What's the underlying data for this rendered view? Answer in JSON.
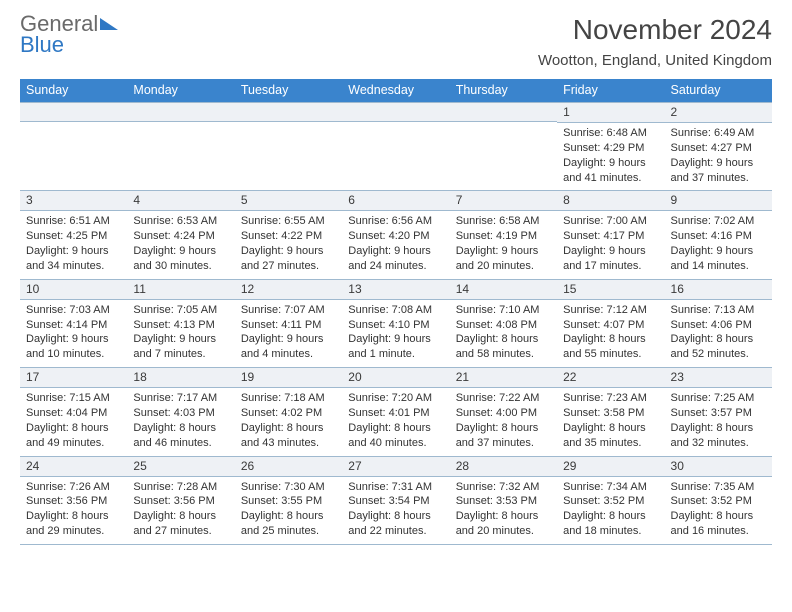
{
  "brand": {
    "name_a": "General",
    "name_b": "Blue"
  },
  "title": "November 2024",
  "location": "Wootton, England, United Kingdom",
  "colors": {
    "header_bg": "#3a84cd",
    "header_fg": "#ffffff",
    "daynum_bg": "#eef1f5",
    "border": "#9fb9cf",
    "text": "#333333",
    "brand_blue": "#2f78c4",
    "brand_gray": "#6a6a6a"
  },
  "dow": [
    "Sunday",
    "Monday",
    "Tuesday",
    "Wednesday",
    "Thursday",
    "Friday",
    "Saturday"
  ],
  "weeks": [
    [
      {
        "n": "",
        "sr": "",
        "ss": "",
        "dl": ""
      },
      {
        "n": "",
        "sr": "",
        "ss": "",
        "dl": ""
      },
      {
        "n": "",
        "sr": "",
        "ss": "",
        "dl": ""
      },
      {
        "n": "",
        "sr": "",
        "ss": "",
        "dl": ""
      },
      {
        "n": "",
        "sr": "",
        "ss": "",
        "dl": ""
      },
      {
        "n": "1",
        "sr": "Sunrise: 6:48 AM",
        "ss": "Sunset: 4:29 PM",
        "dl": "Daylight: 9 hours and 41 minutes."
      },
      {
        "n": "2",
        "sr": "Sunrise: 6:49 AM",
        "ss": "Sunset: 4:27 PM",
        "dl": "Daylight: 9 hours and 37 minutes."
      }
    ],
    [
      {
        "n": "3",
        "sr": "Sunrise: 6:51 AM",
        "ss": "Sunset: 4:25 PM",
        "dl": "Daylight: 9 hours and 34 minutes."
      },
      {
        "n": "4",
        "sr": "Sunrise: 6:53 AM",
        "ss": "Sunset: 4:24 PM",
        "dl": "Daylight: 9 hours and 30 minutes."
      },
      {
        "n": "5",
        "sr": "Sunrise: 6:55 AM",
        "ss": "Sunset: 4:22 PM",
        "dl": "Daylight: 9 hours and 27 minutes."
      },
      {
        "n": "6",
        "sr": "Sunrise: 6:56 AM",
        "ss": "Sunset: 4:20 PM",
        "dl": "Daylight: 9 hours and 24 minutes."
      },
      {
        "n": "7",
        "sr": "Sunrise: 6:58 AM",
        "ss": "Sunset: 4:19 PM",
        "dl": "Daylight: 9 hours and 20 minutes."
      },
      {
        "n": "8",
        "sr": "Sunrise: 7:00 AM",
        "ss": "Sunset: 4:17 PM",
        "dl": "Daylight: 9 hours and 17 minutes."
      },
      {
        "n": "9",
        "sr": "Sunrise: 7:02 AM",
        "ss": "Sunset: 4:16 PM",
        "dl": "Daylight: 9 hours and 14 minutes."
      }
    ],
    [
      {
        "n": "10",
        "sr": "Sunrise: 7:03 AM",
        "ss": "Sunset: 4:14 PM",
        "dl": "Daylight: 9 hours and 10 minutes."
      },
      {
        "n": "11",
        "sr": "Sunrise: 7:05 AM",
        "ss": "Sunset: 4:13 PM",
        "dl": "Daylight: 9 hours and 7 minutes."
      },
      {
        "n": "12",
        "sr": "Sunrise: 7:07 AM",
        "ss": "Sunset: 4:11 PM",
        "dl": "Daylight: 9 hours and 4 minutes."
      },
      {
        "n": "13",
        "sr": "Sunrise: 7:08 AM",
        "ss": "Sunset: 4:10 PM",
        "dl": "Daylight: 9 hours and 1 minute."
      },
      {
        "n": "14",
        "sr": "Sunrise: 7:10 AM",
        "ss": "Sunset: 4:08 PM",
        "dl": "Daylight: 8 hours and 58 minutes."
      },
      {
        "n": "15",
        "sr": "Sunrise: 7:12 AM",
        "ss": "Sunset: 4:07 PM",
        "dl": "Daylight: 8 hours and 55 minutes."
      },
      {
        "n": "16",
        "sr": "Sunrise: 7:13 AM",
        "ss": "Sunset: 4:06 PM",
        "dl": "Daylight: 8 hours and 52 minutes."
      }
    ],
    [
      {
        "n": "17",
        "sr": "Sunrise: 7:15 AM",
        "ss": "Sunset: 4:04 PM",
        "dl": "Daylight: 8 hours and 49 minutes."
      },
      {
        "n": "18",
        "sr": "Sunrise: 7:17 AM",
        "ss": "Sunset: 4:03 PM",
        "dl": "Daylight: 8 hours and 46 minutes."
      },
      {
        "n": "19",
        "sr": "Sunrise: 7:18 AM",
        "ss": "Sunset: 4:02 PM",
        "dl": "Daylight: 8 hours and 43 minutes."
      },
      {
        "n": "20",
        "sr": "Sunrise: 7:20 AM",
        "ss": "Sunset: 4:01 PM",
        "dl": "Daylight: 8 hours and 40 minutes."
      },
      {
        "n": "21",
        "sr": "Sunrise: 7:22 AM",
        "ss": "Sunset: 4:00 PM",
        "dl": "Daylight: 8 hours and 37 minutes."
      },
      {
        "n": "22",
        "sr": "Sunrise: 7:23 AM",
        "ss": "Sunset: 3:58 PM",
        "dl": "Daylight: 8 hours and 35 minutes."
      },
      {
        "n": "23",
        "sr": "Sunrise: 7:25 AM",
        "ss": "Sunset: 3:57 PM",
        "dl": "Daylight: 8 hours and 32 minutes."
      }
    ],
    [
      {
        "n": "24",
        "sr": "Sunrise: 7:26 AM",
        "ss": "Sunset: 3:56 PM",
        "dl": "Daylight: 8 hours and 29 minutes."
      },
      {
        "n": "25",
        "sr": "Sunrise: 7:28 AM",
        "ss": "Sunset: 3:56 PM",
        "dl": "Daylight: 8 hours and 27 minutes."
      },
      {
        "n": "26",
        "sr": "Sunrise: 7:30 AM",
        "ss": "Sunset: 3:55 PM",
        "dl": "Daylight: 8 hours and 25 minutes."
      },
      {
        "n": "27",
        "sr": "Sunrise: 7:31 AM",
        "ss": "Sunset: 3:54 PM",
        "dl": "Daylight: 8 hours and 22 minutes."
      },
      {
        "n": "28",
        "sr": "Sunrise: 7:32 AM",
        "ss": "Sunset: 3:53 PM",
        "dl": "Daylight: 8 hours and 20 minutes."
      },
      {
        "n": "29",
        "sr": "Sunrise: 7:34 AM",
        "ss": "Sunset: 3:52 PM",
        "dl": "Daylight: 8 hours and 18 minutes."
      },
      {
        "n": "30",
        "sr": "Sunrise: 7:35 AM",
        "ss": "Sunset: 3:52 PM",
        "dl": "Daylight: 8 hours and 16 minutes."
      }
    ]
  ]
}
